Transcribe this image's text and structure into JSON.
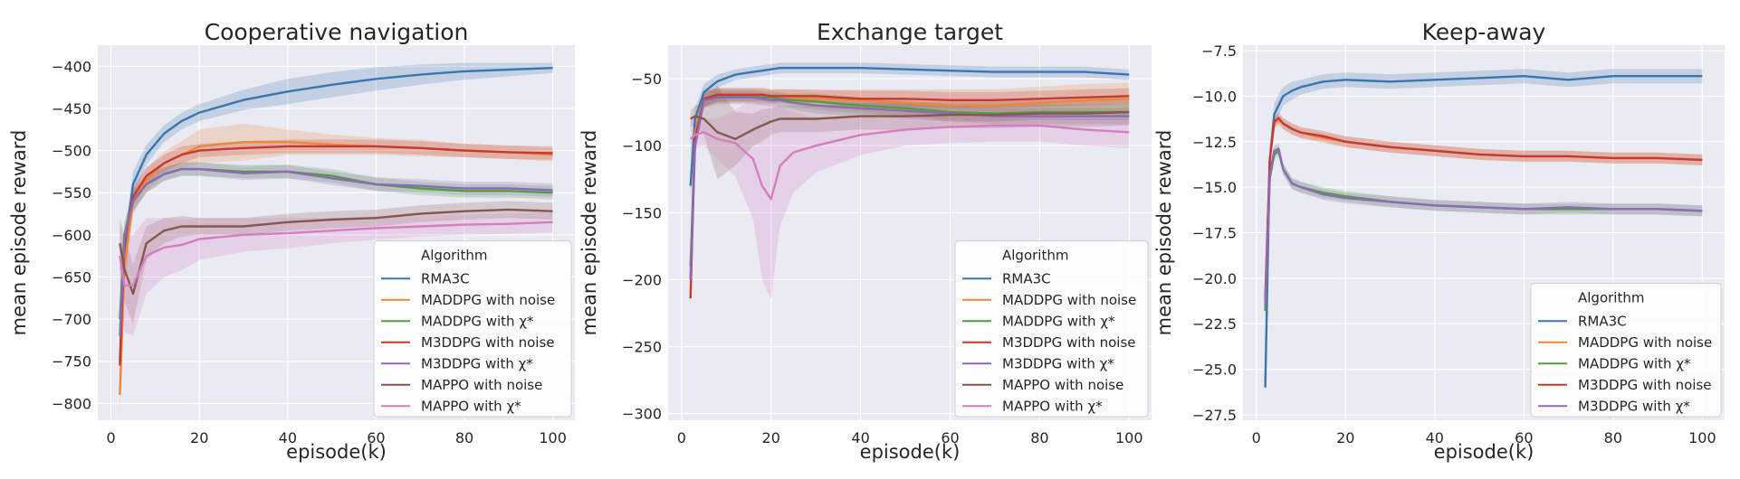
{
  "figure": {
    "xlabel": "episode(k)",
    "ylabel": "mean episode reward",
    "legend_title": "Algorithm"
  },
  "colors": {
    "RMA3C": "#3a75af",
    "MADDPG with noise": "#ef8636",
    "MADDPG with χ*": "#519e3e",
    "M3DDPG with noise": "#c53932",
    "M3DDPG with χ*": "#8d69b8",
    "MAPPO with noise": "#84584e",
    "MAPPO with χ*": "#d57dbf",
    "plot_bg": "#eaeaf2",
    "grid": "#ffffff"
  },
  "chart_data": [
    {
      "type": "line",
      "title": "Cooperative navigation",
      "xlabel": "episode(k)",
      "ylabel": "mean episode reward",
      "xlim": [
        -3,
        105
      ],
      "ylim": [
        -820,
        -375
      ],
      "xticks": [
        0,
        20,
        40,
        60,
        80,
        100
      ],
      "yticks": [
        -800,
        -750,
        -700,
        -650,
        -600,
        -550,
        -500,
        -450,
        -400
      ],
      "ytick_labels": [
        "−800",
        "−750",
        "−700",
        "−650",
        "−600",
        "−550",
        "−500",
        "−450",
        "−400"
      ],
      "grid": true,
      "legend": "lower-right",
      "legend_title": "Algorithm",
      "x": [
        2,
        3,
        5,
        8,
        12,
        16,
        20,
        30,
        40,
        50,
        60,
        70,
        80,
        90,
        100
      ],
      "series": [
        {
          "name": "RMA3C",
          "values": [
            -750,
            -620,
            -540,
            -505,
            -480,
            -465,
            -455,
            -440,
            -430,
            -422,
            -415,
            -410,
            -406,
            -404,
            -402
          ],
          "band": [
            25,
            20,
            15,
            12,
            10,
            10,
            10,
            12,
            15,
            15,
            14,
            12,
            10,
            8,
            6
          ]
        },
        {
          "name": "MADDPG with noise",
          "values": [
            -790,
            -640,
            -560,
            -535,
            -515,
            -505,
            -495,
            -490,
            -490,
            -493,
            -495,
            -497,
            -500,
            -502,
            -505
          ],
          "band": [
            25,
            20,
            15,
            14,
            14,
            16,
            20,
            22,
            15,
            12,
            10,
            10,
            8,
            8,
            8
          ]
        },
        {
          "name": "MADDPG with χ*",
          "values": [
            -700,
            -600,
            -560,
            -540,
            -528,
            -522,
            -522,
            -525,
            -525,
            -530,
            -540,
            -545,
            -548,
            -548,
            -550
          ],
          "band": [
            20,
            15,
            12,
            10,
            8,
            8,
            8,
            8,
            8,
            8,
            8,
            8,
            8,
            8,
            8
          ]
        },
        {
          "name": "M3DDPG with noise",
          "values": [
            -755,
            -610,
            -555,
            -530,
            -515,
            -505,
            -500,
            -497,
            -495,
            -495,
            -495,
            -497,
            -500,
            -502,
            -503
          ],
          "band": [
            20,
            15,
            12,
            10,
            10,
            10,
            8,
            8,
            8,
            8,
            8,
            8,
            8,
            8,
            8
          ]
        },
        {
          "name": "M3DDPG with χ*",
          "values": [
            -720,
            -605,
            -560,
            -540,
            -528,
            -522,
            -522,
            -527,
            -525,
            -533,
            -540,
            -542,
            -545,
            -545,
            -547
          ],
          "band": [
            20,
            15,
            12,
            10,
            8,
            8,
            8,
            8,
            8,
            8,
            8,
            8,
            8,
            8,
            8
          ]
        },
        {
          "name": "MAPPO with noise",
          "values": [
            -610,
            -640,
            -670,
            -610,
            -595,
            -590,
            -590,
            -590,
            -585,
            -582,
            -580,
            -575,
            -572,
            -570,
            -572
          ],
          "band": [
            30,
            40,
            35,
            20,
            15,
            12,
            10,
            10,
            10,
            10,
            10,
            10,
            10,
            10,
            10
          ]
        },
        {
          "name": "MAPPO with χ*",
          "values": [
            -625,
            -660,
            -660,
            -625,
            -615,
            -612,
            -605,
            -600,
            -598,
            -595,
            -592,
            -590,
            -588,
            -587,
            -585
          ],
          "band": [
            35,
            55,
            60,
            45,
            35,
            30,
            25,
            20,
            18,
            15,
            14,
            12,
            12,
            12,
            12
          ]
        }
      ]
    },
    {
      "type": "line",
      "title": "Exchange target",
      "xlabel": "episode(k)",
      "ylabel": "mean episode reward",
      "xlim": [
        -3,
        105
      ],
      "ylim": [
        -305,
        -25
      ],
      "xticks": [
        0,
        20,
        40,
        60,
        80,
        100
      ],
      "yticks": [
        -300,
        -250,
        -200,
        -150,
        -100,
        -50
      ],
      "ytick_labels": [
        "−300",
        "−250",
        "−200",
        "−150",
        "−100",
        "−50"
      ],
      "grid": true,
      "legend": "lower-right",
      "legend_title": "Algorithm",
      "x": [
        2,
        3,
        5,
        8,
        12,
        16,
        18,
        20,
        22,
        25,
        30,
        40,
        50,
        60,
        70,
        80,
        90,
        100
      ],
      "series": [
        {
          "name": "RMA3C",
          "values": [
            -130,
            -80,
            -60,
            -52,
            -47,
            -45,
            -44,
            -43,
            -42,
            -42,
            -42,
            -42,
            -43,
            -44,
            -45,
            -45,
            -45,
            -47
          ],
          "band": [
            10,
            8,
            6,
            5,
            4,
            4,
            4,
            4,
            4,
            4,
            4,
            4,
            4,
            4,
            4,
            4,
            4,
            4
          ]
        },
        {
          "name": "MADDPG with noise",
          "values": [
            -200,
            -90,
            -65,
            -62,
            -62,
            -62,
            -62,
            -63,
            -63,
            -64,
            -65,
            -66,
            -68,
            -70,
            -70,
            -68,
            -66,
            -65
          ],
          "band": [
            10,
            8,
            6,
            5,
            5,
            5,
            5,
            5,
            5,
            6,
            6,
            8,
            10,
            12,
            12,
            12,
            12,
            12
          ]
        },
        {
          "name": "MADDPG with χ*",
          "values": [
            -190,
            -95,
            -65,
            -63,
            -63,
            -63,
            -64,
            -64,
            -65,
            -66,
            -67,
            -70,
            -72,
            -75,
            -76,
            -75,
            -75,
            -75
          ],
          "band": [
            10,
            8,
            6,
            5,
            5,
            5,
            5,
            5,
            5,
            5,
            6,
            6,
            6,
            6,
            6,
            6,
            6,
            6
          ]
        },
        {
          "name": "M3DDPG with noise",
          "values": [
            -214,
            -95,
            -65,
            -62,
            -62,
            -62,
            -62,
            -63,
            -63,
            -63,
            -63,
            -65,
            -65,
            -66,
            -66,
            -65,
            -64,
            -63
          ],
          "band": [
            10,
            8,
            6,
            5,
            5,
            5,
            5,
            5,
            5,
            5,
            5,
            6,
            6,
            6,
            6,
            6,
            6,
            6
          ]
        },
        {
          "name": "M3DDPG with χ*",
          "values": [
            -200,
            -100,
            -66,
            -64,
            -64,
            -64,
            -65,
            -66,
            -66,
            -68,
            -70,
            -72,
            -74,
            -76,
            -78,
            -78,
            -78,
            -78
          ],
          "band": [
            10,
            8,
            6,
            5,
            5,
            5,
            5,
            5,
            5,
            5,
            6,
            6,
            6,
            6,
            6,
            6,
            6,
            6
          ]
        },
        {
          "name": "MAPPO with noise",
          "values": [
            -80,
            -78,
            -80,
            -90,
            -95,
            -88,
            -85,
            -82,
            -80,
            -80,
            -80,
            -78,
            -78,
            -77,
            -77,
            -76,
            -76,
            -75
          ],
          "band": [
            6,
            8,
            12,
            35,
            20,
            12,
            12,
            10,
            10,
            10,
            10,
            10,
            10,
            10,
            10,
            10,
            10,
            10
          ]
        },
        {
          "name": "MAPPO with χ*",
          "values": [
            -95,
            -92,
            -90,
            -95,
            -98,
            -110,
            -130,
            -140,
            -115,
            -105,
            -100,
            -92,
            -88,
            -86,
            -85,
            -85,
            -88,
            -90
          ],
          "band": [
            15,
            10,
            10,
            15,
            25,
            45,
            70,
            75,
            45,
            30,
            20,
            15,
            12,
            12,
            12,
            12,
            12,
            12
          ]
        }
      ]
    },
    {
      "type": "line",
      "title": "Keep-away",
      "xlabel": "episode(k)",
      "ylabel": "mean episode reward",
      "xlim": [
        -3,
        105
      ],
      "ylim": [
        -27.8,
        -7.2
      ],
      "xticks": [
        0,
        20,
        40,
        60,
        80,
        100
      ],
      "yticks": [
        -27.5,
        -25.0,
        -22.5,
        -20.0,
        -17.5,
        -15.0,
        -12.5,
        -10.0,
        -7.5
      ],
      "ytick_labels": [
        "−27.5",
        "−25.0",
        "−22.5",
        "−20.0",
        "−17.5",
        "−15.0",
        "−12.5",
        "−10.0",
        "−7.5"
      ],
      "grid": true,
      "legend": "lower-right",
      "legend_title": "Algorithm",
      "x": [
        2,
        3,
        4,
        5,
        6,
        8,
        10,
        15,
        20,
        30,
        40,
        50,
        60,
        70,
        80,
        90,
        100
      ],
      "series": [
        {
          "name": "RMA3C",
          "values": [
            -26.0,
            -13.5,
            -11.0,
            -10.5,
            -10.0,
            -9.7,
            -9.5,
            -9.2,
            -9.1,
            -9.2,
            -9.1,
            -9.0,
            -8.9,
            -9.1,
            -8.9,
            -8.9,
            -8.9
          ],
          "band": [
            0.5,
            0.6,
            0.6,
            0.6,
            0.5,
            0.5,
            0.4,
            0.4,
            0.4,
            0.4,
            0.4,
            0.4,
            0.4,
            0.4,
            0.4,
            0.4,
            0.4
          ]
        },
        {
          "name": "MADDPG with noise",
          "values": [
            -21.0,
            -13.5,
            -11.5,
            -11.3,
            -11.5,
            -11.8,
            -12.0,
            -12.3,
            -12.5,
            -12.8,
            -13.0,
            -13.2,
            -13.3,
            -13.3,
            -13.4,
            -13.4,
            -13.5
          ],
          "band": [
            0.5,
            0.4,
            0.3,
            0.3,
            0.3,
            0.3,
            0.3,
            0.3,
            0.3,
            0.3,
            0.3,
            0.3,
            0.3,
            0.3,
            0.3,
            0.3,
            0.3
          ]
        },
        {
          "name": "MADDPG with χ*",
          "values": [
            -21.8,
            -14.5,
            -13.2,
            -13.0,
            -14.0,
            -14.8,
            -15.0,
            -15.3,
            -15.5,
            -15.8,
            -16.0,
            -16.1,
            -16.2,
            -16.2,
            -16.2,
            -16.2,
            -16.3
          ],
          "band": [
            0.5,
            0.4,
            0.3,
            0.3,
            0.3,
            0.3,
            0.3,
            0.3,
            0.3,
            0.3,
            0.3,
            0.3,
            0.3,
            0.3,
            0.3,
            0.3,
            0.3
          ]
        },
        {
          "name": "M3DDPG with noise",
          "values": [
            -21.2,
            -13.5,
            -11.4,
            -11.2,
            -11.5,
            -11.8,
            -12.0,
            -12.2,
            -12.5,
            -12.8,
            -13.0,
            -13.2,
            -13.3,
            -13.3,
            -13.4,
            -13.4,
            -13.5
          ],
          "band": [
            0.5,
            0.4,
            0.3,
            0.3,
            0.3,
            0.3,
            0.3,
            0.3,
            0.3,
            0.3,
            0.3,
            0.3,
            0.3,
            0.3,
            0.3,
            0.3,
            0.3
          ]
        },
        {
          "name": "M3DDPG with χ*",
          "values": [
            -21.5,
            -14.3,
            -13.0,
            -12.9,
            -14.0,
            -14.8,
            -15.0,
            -15.4,
            -15.6,
            -15.8,
            -16.0,
            -16.1,
            -16.2,
            -16.1,
            -16.2,
            -16.2,
            -16.3
          ],
          "band": [
            0.5,
            0.4,
            0.3,
            0.3,
            0.3,
            0.3,
            0.3,
            0.3,
            0.3,
            0.3,
            0.3,
            0.3,
            0.3,
            0.3,
            0.3,
            0.3,
            0.3
          ]
        }
      ]
    }
  ]
}
